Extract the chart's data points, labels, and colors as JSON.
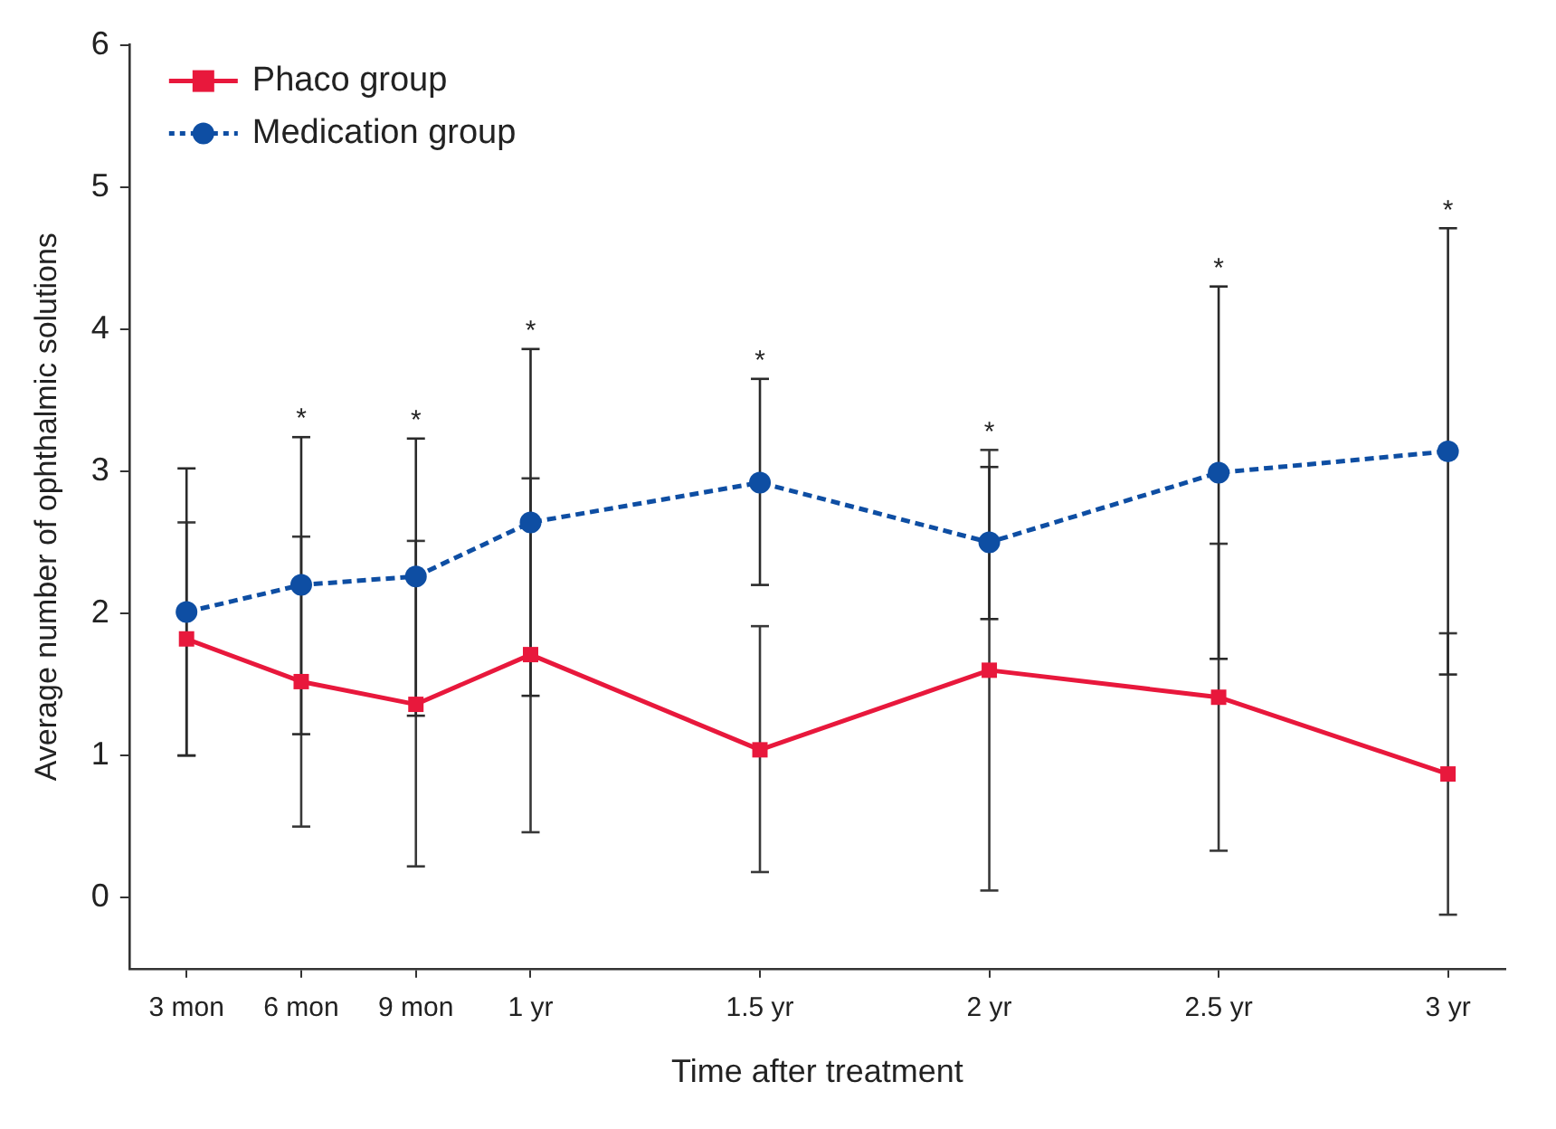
{
  "chart_data": {
    "type": "line",
    "xlabel": "Time after treatment",
    "ylabel": "Average number of ophthalmic solutions",
    "categories": [
      "3 mon",
      "6 mon",
      "9 mon",
      "1 yr",
      null,
      "1.5 yr",
      null,
      "2 yr",
      null,
      "2.5 yr",
      null,
      "3 yr"
    ],
    "ylim": [
      -0.5,
      6
    ],
    "yticks": [
      0,
      1,
      2,
      3,
      4,
      5,
      6
    ],
    "legend": "top left",
    "series": [
      {
        "name": "Phaco group",
        "color": "#e8183c",
        "marker": "square",
        "line_style": "solid",
        "values": [
          1.82,
          1.52,
          1.36,
          1.71,
          null,
          1.04,
          null,
          1.6,
          null,
          1.41,
          null,
          0.87
        ],
        "errors": [
          [
            1.0,
            2.64
          ],
          [
            0.5,
            2.54
          ],
          [
            0.22,
            2.51
          ],
          [
            0.46,
            2.95
          ],
          null,
          [
            0.18,
            1.91
          ],
          null,
          [
            0.05,
            3.15
          ],
          null,
          [
            0.33,
            2.49
          ],
          null,
          [
            -0.12,
            1.86
          ]
        ]
      },
      {
        "name": "Medication group",
        "color": "#0e4ea3",
        "marker": "circle",
        "line_style": "dashed",
        "values": [
          2.01,
          2.2,
          2.26,
          2.64,
          null,
          2.92,
          null,
          2.5,
          null,
          2.99,
          null,
          3.14
        ],
        "errors": [
          [
            1.0,
            3.02
          ],
          [
            1.15,
            3.24
          ],
          [
            1.28,
            3.23
          ],
          [
            1.42,
            3.86
          ],
          null,
          [
            2.2,
            3.65
          ],
          null,
          [
            1.96,
            3.03
          ],
          null,
          [
            1.68,
            4.3
          ],
          null,
          [
            1.57,
            4.71
          ]
        ]
      }
    ],
    "annotations": [
      {
        "text": "*",
        "x": "6 mon",
        "y": 3.24
      },
      {
        "text": "*",
        "x": "9 mon",
        "y": 3.23
      },
      {
        "text": "*",
        "x": "1 yr",
        "y": 3.86
      },
      {
        "text": "*",
        "x": "1.5 yr",
        "y": 3.65
      },
      {
        "text": "*",
        "x": "2 yr",
        "y": 3.15
      },
      {
        "text": "*",
        "x": "2.5 yr",
        "y": 4.3
      },
      {
        "text": "*",
        "x": "3 yr",
        "y": 4.71
      }
    ]
  }
}
